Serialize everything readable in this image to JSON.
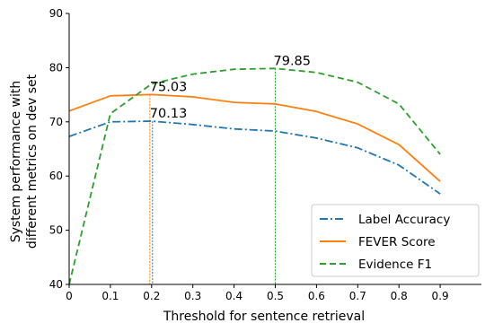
{
  "chart_data": {
    "type": "line",
    "xlabel": "Threshold for sentence retrieval",
    "ylabel": [
      "System performance with",
      "different metrics on dev set"
    ],
    "x": [
      0,
      0.1,
      0.2,
      0.3,
      0.4,
      0.5,
      0.6,
      0.7,
      0.8,
      0.9
    ],
    "x_tick_labels": [
      "0",
      "0.1",
      "0.2",
      "0.3",
      "0.4",
      "0.5",
      "0.6",
      "0.7",
      "0.8",
      "0.9"
    ],
    "y_ticks": [
      40,
      50,
      60,
      70,
      80,
      90
    ],
    "xlim": [
      0,
      1.0
    ],
    "ylim": [
      40,
      90
    ],
    "grid": false,
    "legend_position": "lower-right",
    "series": [
      {
        "name": "Label Accuracy",
        "color": "#1f77b4",
        "line_style": "dash-dot",
        "values": [
          67.3,
          70.0,
          70.13,
          69.5,
          68.7,
          68.3,
          67.0,
          65.2,
          62.0,
          56.7
        ]
      },
      {
        "name": "FEVER Score",
        "color": "#ff7f0e",
        "line_style": "solid",
        "values": [
          72.0,
          74.8,
          75.03,
          74.6,
          73.6,
          73.3,
          71.9,
          69.6,
          65.8,
          59.0
        ]
      },
      {
        "name": "Evidence F1",
        "color": "#2ca02c",
        "line_style": "dashed",
        "values": [
          40.0,
          71.5,
          77.0,
          78.8,
          79.7,
          79.85,
          79.1,
          77.3,
          73.3,
          64.0
        ]
      }
    ],
    "annotations": [
      {
        "text": "79.85",
        "x": 0.5,
        "y": 79.85,
        "series": "Evidence F1"
      },
      {
        "text": "75.03",
        "x": 0.2,
        "y": 75.03,
        "series": "FEVER Score"
      },
      {
        "text": "70.13",
        "x": 0.2,
        "y": 70.13,
        "series": "Label Accuracy"
      }
    ],
    "peak_markers": [
      {
        "x": 0.5,
        "y": 79.85,
        "color": "#2ca02c"
      },
      {
        "x": 0.2,
        "y": 75.03,
        "color": "#ff7f0e"
      },
      {
        "x": 0.2,
        "y": 70.13,
        "color": "#1f77b4"
      }
    ]
  }
}
